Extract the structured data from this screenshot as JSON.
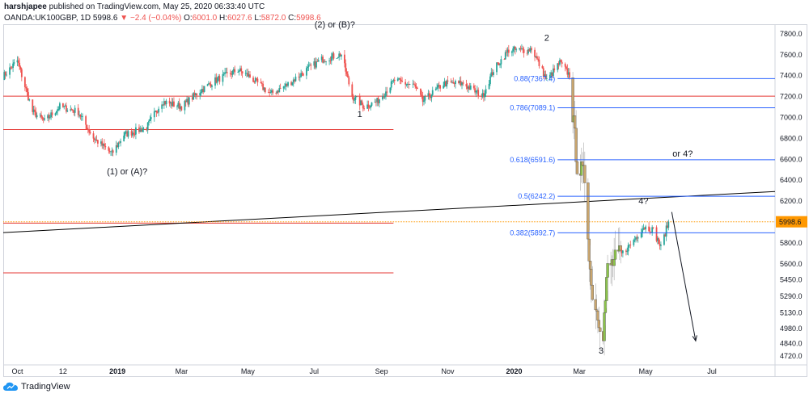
{
  "header": {
    "line1_user": "harshjapee",
    "line1_rest": " published on TradingView.com, May 25, 2020 06:33:40 UTC",
    "symbol": "OANDA:UK100GBP, 1D",
    "last": "5998.6",
    "change": "−2.4 (−0.04%)",
    "o_label": "O:",
    "o_value": "6001.0",
    "h_label": "H:",
    "h_value": "6027.6",
    "l_label": "L:",
    "l_value": "5872.0",
    "c_label": "C:",
    "c_value": "5998.6"
  },
  "footer": {
    "brand": "TradingView"
  },
  "colors": {
    "up": "#26a69a",
    "down": "#ef5350",
    "up_bar": "#8bc34a",
    "down_bar": "#c9a56d",
    "fib": "#2962ff",
    "trend": "#000000",
    "level": "#e53935",
    "price_tag": "#ff9800"
  },
  "chart_data": {
    "type": "candlestick",
    "title": "OANDA:UK100GBP, 1D",
    "ylim": [
      4630,
      7880
    ],
    "y_ticks": [
      "7800.0",
      "7600.0",
      "7400.0",
      "7200.0",
      "7000.0",
      "6800.0",
      "6600.0",
      "6400.0",
      "6200.0",
      "6000.0",
      "5800.0",
      "5600.0",
      "5450.0",
      "5290.0",
      "5130.0",
      "4980.0",
      "4840.0",
      "4720.0"
    ],
    "y_tick_values": [
      7800,
      7600,
      7400,
      7200,
      7000,
      6800,
      6600,
      6400,
      6200,
      6000,
      5800,
      5600,
      5450,
      5290,
      5130,
      4980,
      4840,
      4720
    ],
    "x_ticks": [
      "Oct",
      "12",
      "2019",
      "Mar",
      "May",
      "Jul",
      "Sep",
      "Nov",
      "2020",
      "Mar",
      "May",
      "Jul"
    ],
    "x_tick_dates": [
      "2018-10-01",
      "2018-11-12",
      "2019-01-01",
      "2019-03-01",
      "2019-05-01",
      "2019-07-01",
      "2019-09-01",
      "2019-11-01",
      "2020-01-01",
      "2020-03-01",
      "2020-05-01",
      "2020-07-01"
    ],
    "x_range": [
      "2018-09-18",
      "2020-08-28"
    ],
    "last_price": 5998.6,
    "path": [
      [
        "2018-09-18",
        7390
      ],
      [
        "2018-10-01",
        7540
      ],
      [
        "2018-10-15",
        7050
      ],
      [
        "2018-10-26",
        6960
      ],
      [
        "2018-11-09",
        7100
      ],
      [
        "2018-11-26",
        7050
      ],
      [
        "2018-12-10",
        6800
      ],
      [
        "2018-12-27",
        6650
      ],
      [
        "2019-01-07",
        6830
      ],
      [
        "2019-01-28",
        6900
      ],
      [
        "2019-02-11",
        7150
      ],
      [
        "2019-03-01",
        7100
      ],
      [
        "2019-03-18",
        7250
      ],
      [
        "2019-04-01",
        7350
      ],
      [
        "2019-04-22",
        7450
      ],
      [
        "2019-05-01",
        7400
      ],
      [
        "2019-05-22",
        7220
      ],
      [
        "2019-06-05",
        7300
      ],
      [
        "2019-06-24",
        7450
      ],
      [
        "2019-07-08",
        7550
      ],
      [
        "2019-07-26",
        7600
      ],
      [
        "2019-08-05",
        7200
      ],
      [
        "2019-08-16",
        7100
      ],
      [
        "2019-08-28",
        7150
      ],
      [
        "2019-09-13",
        7350
      ],
      [
        "2019-10-01",
        7300
      ],
      [
        "2019-10-09",
        7150
      ],
      [
        "2019-10-28",
        7320
      ],
      [
        "2019-11-15",
        7320
      ],
      [
        "2019-12-03",
        7200
      ],
      [
        "2019-12-13",
        7450
      ],
      [
        "2019-12-27",
        7640
      ],
      [
        "2020-01-14",
        7640
      ],
      [
        "2020-01-17",
        7660
      ],
      [
        "2020-01-31",
        7350
      ],
      [
        "2020-02-12",
        7520
      ],
      [
        "2020-02-21",
        7400
      ],
      [
        "2020-02-28",
        6550
      ],
      [
        "2020-03-06",
        6420
      ],
      [
        "2020-03-12",
        5380
      ],
      [
        "2020-03-17",
        5150
      ],
      [
        "2020-03-23",
        4950
      ],
      [
        "2020-03-27",
        5550
      ],
      [
        "2020-04-08",
        5680
      ],
      [
        "2020-04-17",
        5780
      ],
      [
        "2020-04-29",
        5950
      ],
      [
        "2020-05-08",
        5920
      ],
      [
        "2020-05-15",
        5750
      ],
      [
        "2020-05-22",
        5998.6
      ]
    ],
    "horizontal_levels": [
      {
        "price": 7200,
        "from": "2018-09-18",
        "to": "2020-08-28"
      },
      {
        "price": 6880,
        "from": "2018-09-18",
        "to": "2019-09-12"
      },
      {
        "price": 5986,
        "from": "2018-09-18",
        "to": "2019-09-12"
      },
      {
        "price": 5510,
        "from": "2018-09-18",
        "to": "2019-09-12"
      }
    ],
    "fib_levels": [
      {
        "ratio": "0.88",
        "price": 7367.4,
        "label": "0.88(7367.4)"
      },
      {
        "ratio": "0.786",
        "price": 7089.1,
        "label": "0.786(7089.1)"
      },
      {
        "ratio": "0.618",
        "price": 6591.6,
        "label": "0.618(6591.6)"
      },
      {
        "ratio": "0.5",
        "price": 6242.2,
        "label": "0.5(6242.2)"
      },
      {
        "ratio": "0.382",
        "price": 5892.7,
        "label": "0.382(5892.7)"
      }
    ],
    "fib_from": "2020-02-10",
    "fib_to": "2020-08-28",
    "trendline": [
      [
        "2018-09-18",
        5895
      ],
      [
        "2020-08-28",
        6288
      ]
    ],
    "projection": [
      [
        "2020-05-25",
        6092
      ],
      [
        "2020-06-16",
        4860
      ]
    ],
    "annotations": [
      {
        "text": "(2) or (B)?",
        "date": "2019-07-20",
        "price": 7855
      },
      {
        "text": "1",
        "date": "2019-08-12",
        "price": 7000
      },
      {
        "text": "2",
        "date": "2020-01-31",
        "price": 7730
      },
      {
        "text": "(1) or (A)?",
        "date": "2019-01-10",
        "price": 6450
      },
      {
        "text": "or 4?",
        "date": "2020-06-04",
        "price": 6620
      },
      {
        "text": "4?",
        "date": "2020-04-29",
        "price": 6170
      },
      {
        "text": "3",
        "date": "2020-03-21",
        "price": 4740
      }
    ]
  }
}
